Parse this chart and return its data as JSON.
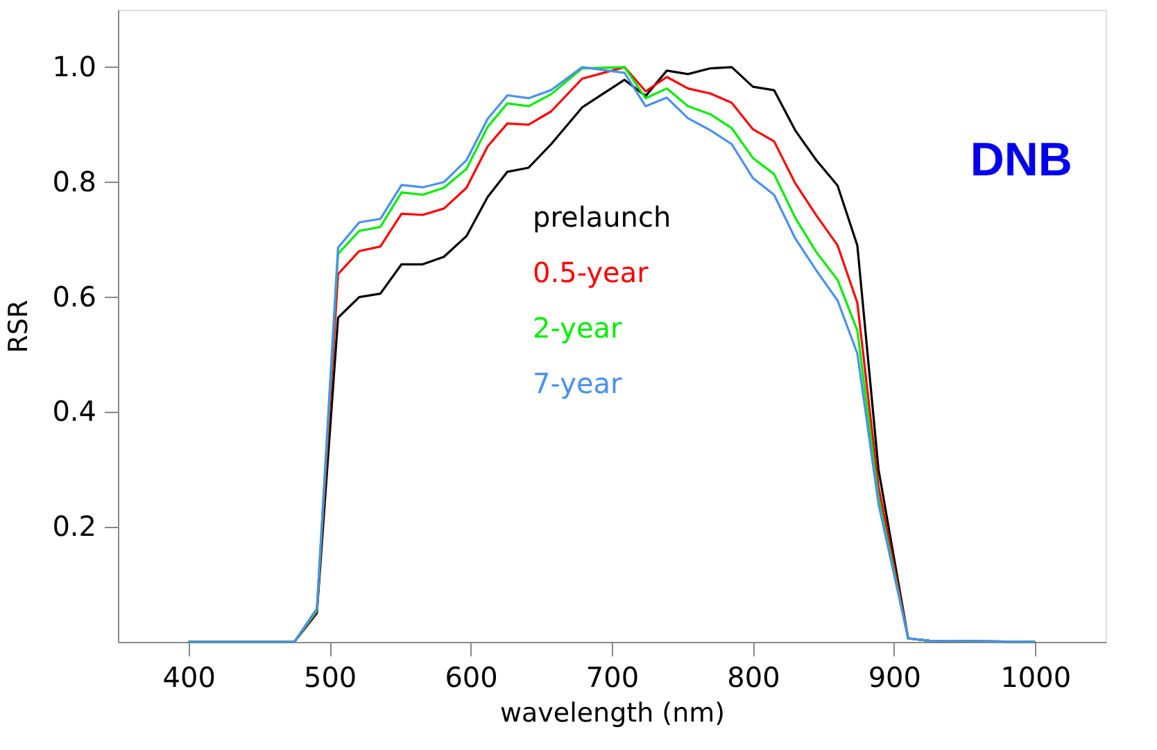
{
  "chart_data": {
    "type": "line",
    "xlabel": "wavelength (nm)",
    "ylabel": "RSR",
    "x": [
      400,
      475,
      491,
      506,
      521,
      536,
      551,
      566,
      581,
      597,
      612,
      626,
      641,
      657,
      679,
      709,
      724,
      739,
      754,
      770,
      785,
      800,
      815,
      830,
      845,
      860,
      874,
      889,
      910,
      925,
      1000
    ],
    "series": [
      {
        "name": "prelaunch",
        "color": "#000000",
        "values": [
          0,
          0,
          0.05,
          0.564,
          0.6,
          0.606,
          0.657,
          0.657,
          0.67,
          0.706,
          0.774,
          0.818,
          0.825,
          0.866,
          0.93,
          0.978,
          0.95,
          0.994,
          0.988,
          0.998,
          1.0,
          0.966,
          0.96,
          0.89,
          0.838,
          0.794,
          0.69,
          0.3,
          0.006,
          0.002,
          0
        ]
      },
      {
        "name": "0.5-year",
        "color": "#ff0000",
        "values": [
          0,
          0,
          0.053,
          0.64,
          0.68,
          0.688,
          0.745,
          0.743,
          0.754,
          0.79,
          0.862,
          0.902,
          0.9,
          0.923,
          0.98,
          1.0,
          0.958,
          0.983,
          0.963,
          0.954,
          0.938,
          0.892,
          0.871,
          0.798,
          0.742,
          0.69,
          0.59,
          0.27,
          0.006,
          0.002,
          0
        ]
      },
      {
        "name": "2-year",
        "color": "#00ee00",
        "values": [
          0,
          0,
          0.055,
          0.675,
          0.715,
          0.722,
          0.782,
          0.778,
          0.79,
          0.823,
          0.896,
          0.937,
          0.932,
          0.953,
          0.998,
          1.0,
          0.946,
          0.963,
          0.932,
          0.918,
          0.894,
          0.842,
          0.814,
          0.738,
          0.678,
          0.63,
          0.542,
          0.25,
          0.006,
          0.002,
          0
        ]
      },
      {
        "name": "7-year",
        "color": "#4a90f0",
        "values": [
          0,
          0,
          0.058,
          0.686,
          0.73,
          0.736,
          0.795,
          0.791,
          0.8,
          0.838,
          0.91,
          0.951,
          0.946,
          0.96,
          1.0,
          0.99,
          0.932,
          0.947,
          0.911,
          0.89,
          0.866,
          0.807,
          0.778,
          0.702,
          0.646,
          0.594,
          0.502,
          0.24,
          0.006,
          0.002,
          0
        ]
      }
    ],
    "xlim": [
      350,
      1050
    ],
    "ylim": [
      0,
      1.1
    ],
    "xticks": [
      400,
      500,
      600,
      700,
      800,
      900,
      1000
    ],
    "yticks": [
      0.2,
      0.4,
      0.6,
      0.8,
      {
        "value": 1,
        "label": "1.0"
      }
    ],
    "annotations": [
      "DNB"
    ],
    "legend": "center",
    "grid": false,
    "marker": "none",
    "line_style": "solid"
  }
}
